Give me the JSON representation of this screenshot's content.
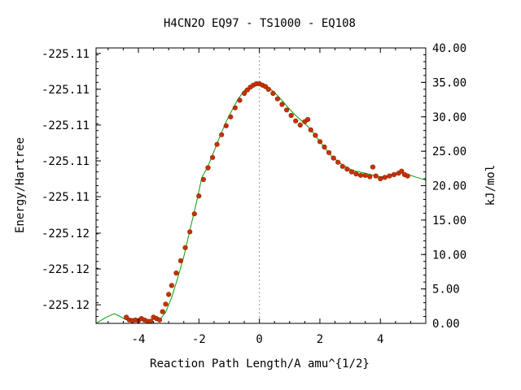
{
  "chart_data": {
    "type": "line",
    "title": "H4CN2O    EQ97 - TS1000 - EQ108",
    "xlabel": "Reaction Path Length/A amu^{1/2}",
    "ylabel": "Energy/Hartree",
    "y2label": "kJ/mol",
    "xlim": [
      -5.4,
      5.5
    ],
    "y2lim": [
      0,
      40
    ],
    "x_ticks": [
      "-4",
      "-2",
      "0",
      "2",
      "4"
    ],
    "x_tick_values": [
      -4,
      -2,
      0,
      2,
      4
    ],
    "y_left_ticks": [
      "-225.11",
      "-225.11",
      "-225.11",
      "-225.11",
      "-225.11",
      "-225.12",
      "-225.12",
      "-225.12"
    ],
    "y_left_tick_kjmol": [
      39.2,
      34.0,
      28.8,
      23.6,
      18.4,
      13.1,
      7.9,
      2.7
    ],
    "y_right_ticks": [
      "40.00",
      "35.00",
      "30.00",
      "25.00",
      "20.00",
      "15.00",
      "10.00",
      "5.00",
      "0.00"
    ],
    "y_right_tick_values": [
      40,
      35,
      30,
      25,
      20,
      15,
      10,
      5,
      0
    ],
    "ts_marker_x": 0,
    "series": [
      {
        "style": "line",
        "color": "#00a000",
        "x": [
          -5.4,
          -5.1,
          -4.8,
          -4.6,
          -4.45,
          -4.3,
          -4.1,
          -3.9,
          -3.7,
          -3.5,
          -3.3,
          -3.1,
          -2.9,
          -2.7,
          -2.5,
          -2.3,
          -2.1,
          -1.9,
          -1.7,
          -1.5,
          -1.3,
          -1.1,
          -0.9,
          -0.7,
          -0.5,
          -0.3,
          -0.1,
          0,
          0.2,
          0.4,
          0.6,
          0.8,
          1.0,
          1.2,
          1.4,
          1.6,
          1.8,
          2.0,
          2.2,
          2.4,
          2.6,
          2.8,
          3.0,
          3.2,
          3.4,
          3.6,
          3.8,
          4.0,
          4.2,
          4.4,
          4.6,
          4.8,
          5.0,
          5.2,
          5.5
        ],
        "y": [
          0.0,
          0.8,
          1.4,
          1.0,
          0.6,
          0.4,
          0.4,
          0.6,
          0.3,
          0.6,
          0.5,
          1.6,
          3.8,
          6.6,
          9.7,
          13.5,
          17.2,
          21.2,
          22.8,
          25.0,
          27.2,
          29.3,
          31.0,
          32.6,
          33.8,
          34.4,
          34.7,
          34.7,
          34.5,
          33.9,
          33.1,
          32.1,
          31.1,
          30.2,
          29.4,
          28.6,
          27.6,
          26.4,
          25.3,
          24.2,
          23.5,
          22.9,
          22.4,
          22.1,
          21.9,
          21.7,
          21.5,
          21.3,
          21.4,
          21.7,
          21.9,
          21.8,
          21.5,
          21.2,
          20.8
        ]
      },
      {
        "style": "points",
        "color": "#c83200",
        "x": [
          -4.4,
          -4.3,
          -4.2,
          -4.1,
          -4.0,
          -3.9,
          -3.8,
          -3.7,
          -3.6,
          -3.5,
          -3.4,
          -3.3,
          -3.2,
          -3.1,
          -3.0,
          -2.9,
          -2.75,
          -2.6,
          -2.45,
          -2.3,
          -2.15,
          -2.0,
          -1.85,
          -1.7,
          -1.55,
          -1.4,
          -1.25,
          -1.1,
          -0.95,
          -0.8,
          -0.65,
          -0.5,
          -0.4,
          -0.3,
          -0.2,
          -0.1,
          0.0,
          0.1,
          0.2,
          0.3,
          0.45,
          0.6,
          0.75,
          0.9,
          1.05,
          1.2,
          1.35,
          1.5,
          1.6,
          1.7,
          1.85,
          2.0,
          2.15,
          2.3,
          2.45,
          2.6,
          2.75,
          2.9,
          3.05,
          3.2,
          3.35,
          3.5,
          3.65,
          3.75,
          3.85,
          4.0,
          4.15,
          4.3,
          4.45,
          4.6,
          4.7,
          4.8,
          4.9
        ],
        "y": [
          0.9,
          0.5,
          0.4,
          0.5,
          0.4,
          0.7,
          0.5,
          0.3,
          0.3,
          0.9,
          0.7,
          0.5,
          1.7,
          2.8,
          4.2,
          5.5,
          7.3,
          9.1,
          11.0,
          13.3,
          15.9,
          18.5,
          20.9,
          22.6,
          24.1,
          26.0,
          27.4,
          28.7,
          30.0,
          31.3,
          32.4,
          33.4,
          33.9,
          34.3,
          34.6,
          34.8,
          34.8,
          34.6,
          34.4,
          34.0,
          33.4,
          32.6,
          31.8,
          31.0,
          30.2,
          29.4,
          28.8,
          29.3,
          29.6,
          28.1,
          27.3,
          26.4,
          25.6,
          24.8,
          24.0,
          23.4,
          22.8,
          22.4,
          22.0,
          21.7,
          21.5,
          21.5,
          21.3,
          22.7,
          21.4,
          21.0,
          21.2,
          21.4,
          21.6,
          21.8,
          22.1,
          21.6,
          21.4
        ]
      }
    ]
  }
}
